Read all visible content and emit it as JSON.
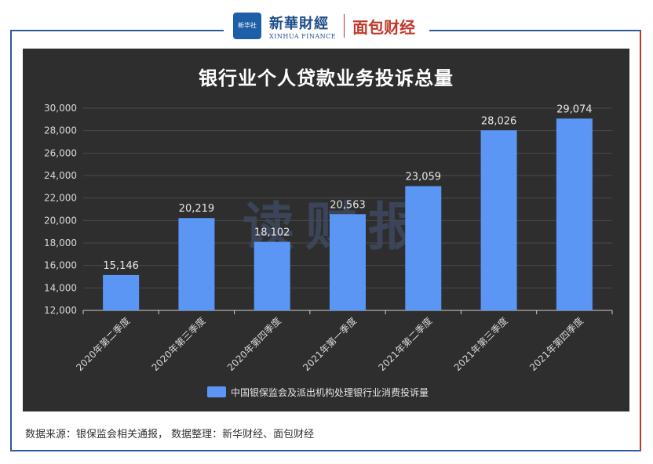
{
  "brand": {
    "xinhua_logo_text": "新华社",
    "xinhua_name": "新華財經",
    "xinhua_english": "XINHUA FINANCE",
    "mianbao_name": "面包财经"
  },
  "colors": {
    "panel_bg": "#2e2e2e",
    "bar": "#5b96f5",
    "frame_left": "#2e5b9a",
    "frame_right": "#c0392b"
  },
  "watermark": "读财报",
  "chart_data": {
    "type": "bar",
    "title": "银行业个人贷款业务投诉总量",
    "categories": [
      "2020年第二季度",
      "2020年第三季度",
      "2020年第四季度",
      "2021年第一季度",
      "2021年第二季度",
      "2021年第三季度",
      "2021年第四季度"
    ],
    "series": [
      {
        "name": "中国银保监会及派出机构处理银行业消费投诉量",
        "values": [
          15146,
          20219,
          18102,
          20563,
          23059,
          28026,
          29074
        ],
        "labels": [
          "15,146",
          "20,219",
          "18,102",
          "20,563",
          "23,059",
          "28,026",
          "29,074"
        ]
      }
    ],
    "ylim": [
      12000,
      30000
    ],
    "yticks": [
      12000,
      14000,
      16000,
      18000,
      20000,
      22000,
      24000,
      26000,
      28000,
      30000
    ],
    "ytick_labels": [
      "12,000",
      "14,000",
      "16,000",
      "18,000",
      "20,000",
      "22,000",
      "24,000",
      "26,000",
      "28,000",
      "30,000"
    ],
    "grid": true,
    "legend_position": "bottom-center"
  },
  "footer": {
    "source": "数据来源：银保监会相关通报， 数据整理：新华财经、面包财经"
  }
}
